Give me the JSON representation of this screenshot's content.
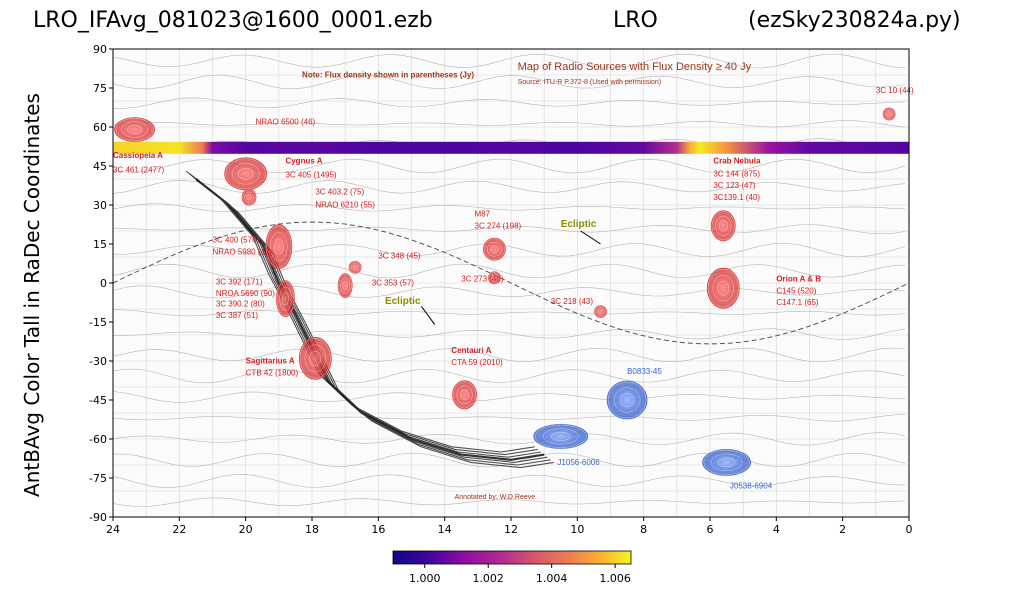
{
  "header": {
    "left": "LRO_IFAvg_081023@1600_0001.ezb",
    "center": "LRO",
    "right": "(ezSky230824a.py)"
  },
  "chart_data": {
    "type": "heatmap",
    "title": "",
    "xlabel": "",
    "ylabel": "AntBAvg Color Tall in RaDec Coordinates",
    "xlim": [
      24,
      0
    ],
    "ylim": [
      -90,
      90
    ],
    "x_ticks": [
      "24",
      "22",
      "20",
      "18",
      "16",
      "14",
      "12",
      "10",
      "8",
      "6",
      "4",
      "2",
      "0"
    ],
    "y_ticks": [
      "90",
      "75",
      "60",
      "45",
      "30",
      "15",
      "0",
      "-15",
      "-30",
      "-45",
      "-60",
      "-75",
      "-90"
    ],
    "colormap": "plasma",
    "colorbar": {
      "min": 0.999,
      "max": 1.0065,
      "ticks": [
        "1.000",
        "1.002",
        "1.004",
        "1.006"
      ]
    },
    "strip": {
      "dec": 52,
      "ra_values": [
        24,
        22,
        21.3,
        21,
        20,
        18,
        16,
        14,
        12,
        10,
        8,
        7,
        6.6,
        6.3,
        5.5,
        4.2,
        3,
        0
      ],
      "values": [
        1.006,
        1.0062,
        1.0045,
        1.001,
        1.0004,
        1.0005,
        1.0003,
        1.0003,
        1.0004,
        1.0003,
        1.0006,
        1.0025,
        1.0055,
        1.0063,
        1.005,
        1.0015,
        1.0006,
        1.0004
      ]
    },
    "sources": [
      {
        "ra": 23.35,
        "dec": 59,
        "rx": 20,
        "ry": 12,
        "color": "#e23a3a"
      },
      {
        "ra": 20.0,
        "dec": 42,
        "rx": 21,
        "ry": 16,
        "color": "#e23a3a"
      },
      {
        "ra": 19.9,
        "dec": 33,
        "rx": 7,
        "ry": 8,
        "color": "#e23a3a"
      },
      {
        "ra": 19.0,
        "dec": 14,
        "rx": 13,
        "ry": 22,
        "color": "#e23a3a"
      },
      {
        "ra": 18.8,
        "dec": -6,
        "rx": 9,
        "ry": 18,
        "color": "#e23a3a"
      },
      {
        "ra": 17.9,
        "dec": -29,
        "rx": 16,
        "ry": 21,
        "color": "#e23a3a"
      },
      {
        "ra": 17.0,
        "dec": -1,
        "rx": 7,
        "ry": 12,
        "color": "#e23a3a"
      },
      {
        "ra": 16.7,
        "dec": 6,
        "rx": 6,
        "ry": 6,
        "color": "#e23a3a"
      },
      {
        "ra": 13.4,
        "dec": -43,
        "rx": 12,
        "ry": 14,
        "color": "#e23a3a"
      },
      {
        "ra": 12.5,
        "dec": 13,
        "rx": 11,
        "ry": 11,
        "color": "#e23a3a"
      },
      {
        "ra": 12.5,
        "dec": 2,
        "rx": 6,
        "ry": 6,
        "color": "#e23a3a"
      },
      {
        "ra": 9.3,
        "dec": -11,
        "rx": 6,
        "ry": 6,
        "color": "#e23a3a"
      },
      {
        "ra": 5.6,
        "dec": 22,
        "rx": 12,
        "ry": 15,
        "color": "#e23a3a"
      },
      {
        "ra": 5.6,
        "dec": -2,
        "rx": 16,
        "ry": 20,
        "color": "#e23a3a"
      },
      {
        "ra": 0.6,
        "dec": 65,
        "rx": 6,
        "ry": 6,
        "color": "#e23a3a"
      },
      {
        "ra": 10.5,
        "dec": -59,
        "rx": 27,
        "ry": 12,
        "color": "#4a72d8"
      },
      {
        "ra": 8.5,
        "dec": -45,
        "rx": 20,
        "ry": 19,
        "color": "#4a72d8"
      },
      {
        "ra": 5.5,
        "dec": -69,
        "rx": 24,
        "ry": 13,
        "color": "#4a72d8"
      }
    ],
    "annotations": [
      {
        "text": "Note: Flux density shown in parentheses (Jy)",
        "ra": 18.3,
        "dec": 79,
        "color": "#a0361a",
        "size": 8,
        "weight": "bold"
      },
      {
        "text": "Map of Radio Sources with Flux Density ≥ 40 Jy",
        "ra": 11.8,
        "dec": 82,
        "color": "#a0361a",
        "size": 11,
        "weight": "normal"
      },
      {
        "text": "Source: ITU-R P.372-8 (Used with permission)",
        "ra": 11.8,
        "dec": 76.5,
        "color": "#a0361a",
        "size": 7,
        "weight": "normal"
      },
      {
        "text": "3C 10 (44)",
        "ra": 1.0,
        "dec": 73,
        "color": "#d42020",
        "size": 8,
        "weight": "normal"
      },
      {
        "text": "NRAO 6500 (46)",
        "ra": 19.7,
        "dec": 61,
        "color": "#d42020",
        "size": 8,
        "weight": "normal"
      },
      {
        "text": "Cassiopeia A",
        "ra": 24.0,
        "dec": 48,
        "color": "#d42020",
        "size": 8,
        "weight": "bold"
      },
      {
        "text": "3C 461 (2477)",
        "ra": 24.0,
        "dec": 42.5,
        "color": "#d42020",
        "size": 8,
        "weight": "normal"
      },
      {
        "text": "Cygnus A",
        "ra": 18.8,
        "dec": 46,
        "color": "#d42020",
        "size": 8,
        "weight": "bold"
      },
      {
        "text": "3C 405 (1495)",
        "ra": 18.8,
        "dec": 40.5,
        "color": "#d42020",
        "size": 8,
        "weight": "normal"
      },
      {
        "text": "3C 403.2 (75)",
        "ra": 17.9,
        "dec": 34,
        "color": "#d42020",
        "size": 8,
        "weight": "normal"
      },
      {
        "text": "NRAO 6210 (55)",
        "ra": 17.9,
        "dec": 29,
        "color": "#d42020",
        "size": 8,
        "weight": "normal"
      },
      {
        "text": "3C 400 (576)",
        "ra": 21.0,
        "dec": 15.5,
        "color": "#d42020",
        "size": 8,
        "weight": "normal"
      },
      {
        "text": "NRAO 5980 (47)",
        "ra": 21.0,
        "dec": 11,
        "color": "#d42020",
        "size": 8,
        "weight": "normal"
      },
      {
        "text": "3C 348 (45)",
        "ra": 16.0,
        "dec": 9.5,
        "color": "#d42020",
        "size": 8,
        "weight": "normal"
      },
      {
        "text": "3C 353 (57)",
        "ra": 16.2,
        "dec": -1,
        "color": "#d42020",
        "size": 8,
        "weight": "normal"
      },
      {
        "text": "3C 392 (171)",
        "ra": 20.9,
        "dec": -0.5,
        "color": "#d42020",
        "size": 8,
        "weight": "normal"
      },
      {
        "text": "NROA 5690 (90)",
        "ra": 20.9,
        "dec": -5,
        "color": "#d42020",
        "size": 8,
        "weight": "normal"
      },
      {
        "text": "3C 390.2 (80)",
        "ra": 20.9,
        "dec": -9,
        "color": "#d42020",
        "size": 8,
        "weight": "normal"
      },
      {
        "text": "3C 387 (51)",
        "ra": 20.9,
        "dec": -13.5,
        "color": "#d42020",
        "size": 8,
        "weight": "normal"
      },
      {
        "text": "Sagittarius A",
        "ra": 20.0,
        "dec": -31,
        "color": "#d42020",
        "size": 8,
        "weight": "bold"
      },
      {
        "text": "CTB 42 (1800)",
        "ra": 20.0,
        "dec": -35.5,
        "color": "#d42020",
        "size": 8,
        "weight": "normal"
      },
      {
        "text": "M87",
        "ra": 13.1,
        "dec": 25.5,
        "color": "#d42020",
        "size": 8,
        "weight": "normal"
      },
      {
        "text": "3C 274 (198)",
        "ra": 13.1,
        "dec": 21,
        "color": "#d42020",
        "size": 8,
        "weight": "normal"
      },
      {
        "text": "3C 273 (46)",
        "ra": 13.5,
        "dec": 0.5,
        "color": "#d42020",
        "size": 8,
        "weight": "normal"
      },
      {
        "text": "Centauri A",
        "ra": 13.8,
        "dec": -27,
        "color": "#d42020",
        "size": 8,
        "weight": "bold"
      },
      {
        "text": "CTA 59 (2010)",
        "ra": 13.8,
        "dec": -31.5,
        "color": "#d42020",
        "size": 8,
        "weight": "normal"
      },
      {
        "text": "3C 218 (43)",
        "ra": 10.8,
        "dec": -8,
        "color": "#d42020",
        "size": 8,
        "weight": "normal"
      },
      {
        "text": "Crab Nebula",
        "ra": 5.9,
        "dec": 46,
        "color": "#d42020",
        "size": 8,
        "weight": "bold"
      },
      {
        "text": "3C 144 (875)",
        "ra": 5.9,
        "dec": 41,
        "color": "#d42020",
        "size": 8,
        "weight": "normal"
      },
      {
        "text": "3C 123 (47)",
        "ra": 5.9,
        "dec": 36.5,
        "color": "#d42020",
        "size": 8,
        "weight": "normal"
      },
      {
        "text": "3C139.1 (40)",
        "ra": 5.9,
        "dec": 32,
        "color": "#d42020",
        "size": 8,
        "weight": "normal"
      },
      {
        "text": "Orion A & B",
        "ra": 4.0,
        "dec": 0.5,
        "color": "#d42020",
        "size": 8,
        "weight": "bold"
      },
      {
        "text": "C145 (520)",
        "ra": 4.0,
        "dec": -4,
        "color": "#d42020",
        "size": 8,
        "weight": "normal"
      },
      {
        "text": "C147.1 (65)",
        "ra": 4.0,
        "dec": -8.5,
        "color": "#d42020",
        "size": 8,
        "weight": "normal"
      },
      {
        "text": "B0833-45",
        "ra": 8.5,
        "dec": -35,
        "color": "#3a66d0",
        "size": 8,
        "weight": "normal"
      },
      {
        "text": "J1056-6006",
        "ra": 10.6,
        "dec": -70,
        "color": "#3a66d0",
        "size": 8,
        "weight": "normal"
      },
      {
        "text": "J0538-6904",
        "ra": 5.4,
        "dec": -79,
        "color": "#3a66d0",
        "size": 8,
        "weight": "normal"
      },
      {
        "text": "Ecliptic",
        "ra": 10.5,
        "dec": 21.5,
        "color": "#8c8c00",
        "size": 10,
        "weight": "bold"
      },
      {
        "text": "Ecliptic",
        "ra": 15.8,
        "dec": -8,
        "color": "#8c8c00",
        "size": 10,
        "weight": "bold"
      },
      {
        "text": "Annotated by: W.D.Reeve",
        "ra": 13.7,
        "dec": -83,
        "color": "#a0361a",
        "size": 7,
        "weight": "normal"
      }
    ]
  }
}
